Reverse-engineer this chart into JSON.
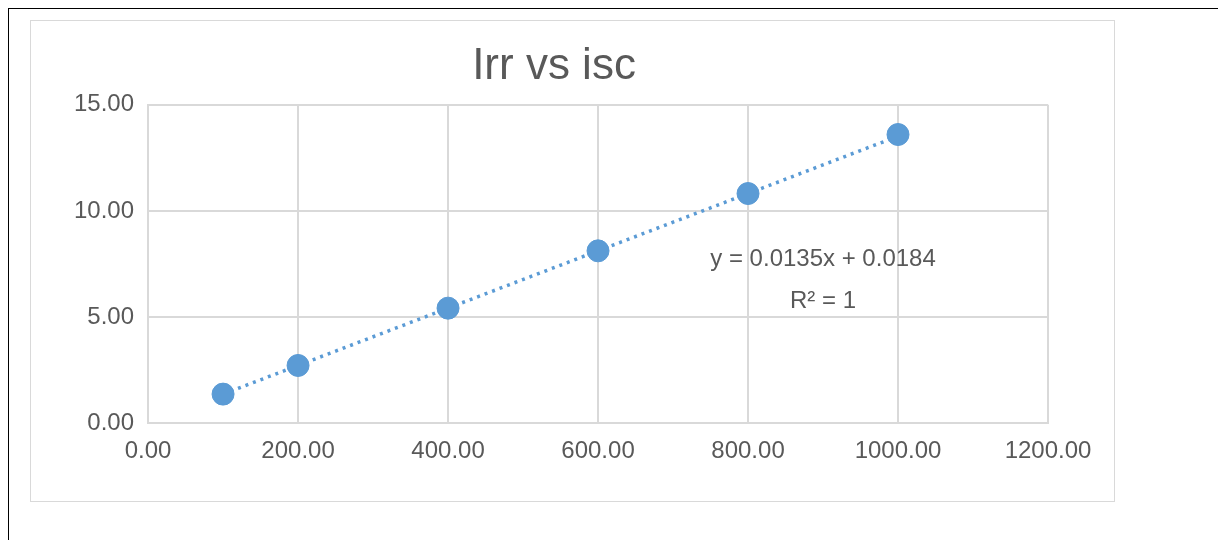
{
  "chart_data": {
    "type": "scatter",
    "title": "Irr vs isc",
    "x": [
      100,
      200,
      400,
      600,
      800,
      1000
    ],
    "series": [
      {
        "color": "#5b9bd5",
        "values": [
          1.37,
          2.72,
          5.42,
          8.12,
          10.82,
          13.6
        ],
        "marker": "circle"
      },
      {
        "type": "line",
        "color": "#5b9bd5",
        "x": [
          100,
          1000
        ],
        "values": [
          1.37,
          13.52
        ],
        "marker": "none",
        "line_style": "dotted"
      }
    ],
    "xlim": [
      0,
      1200
    ],
    "xticks": [
      {
        "value": 0,
        "label": "0.00"
      },
      {
        "value": 200,
        "label": "200.00"
      },
      {
        "value": 400,
        "label": "400.00"
      },
      {
        "value": 600,
        "label": "600.00"
      },
      {
        "value": 800,
        "label": "800.00"
      },
      {
        "value": 1000,
        "label": "1000.00"
      },
      {
        "value": 1200,
        "label": "1200.00"
      }
    ],
    "ylim": [
      0,
      15
    ],
    "yticks": [
      {
        "value": 0,
        "label": "0.00"
      },
      {
        "value": 5,
        "label": "5.00"
      },
      {
        "value": 10,
        "label": "10.00"
      },
      {
        "value": 15,
        "label": "15.00"
      }
    ],
    "grid": true,
    "legend": false,
    "annotations": [
      "y = 0.0135x + 0.0184",
      "R² = 1"
    ]
  }
}
